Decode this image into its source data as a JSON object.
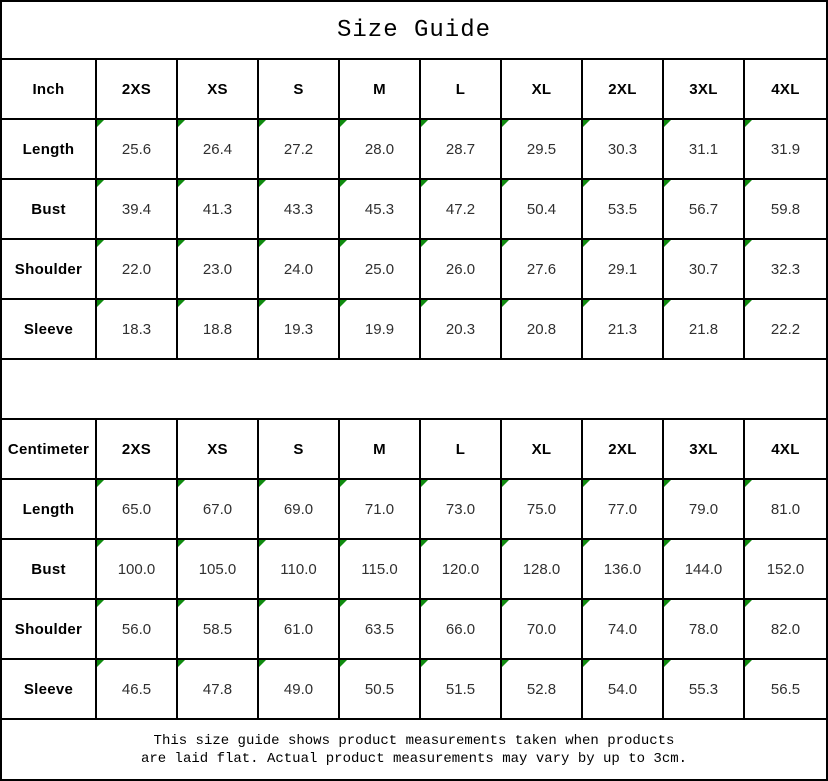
{
  "title": "Size Guide",
  "colors": {
    "border": "#000000",
    "marker_green": "#0f8a0f",
    "value_text": "#303030",
    "header_text": "#000000"
  },
  "icons": {
    "cell_corner_marker": "comment-marker-triangle-icon"
  },
  "tables": [
    {
      "unit_header": "Inch",
      "sizes": [
        "2XS",
        "XS",
        "S",
        "M",
        "L",
        "XL",
        "2XL",
        "3XL",
        "4XL"
      ],
      "rows": [
        {
          "label": "Length",
          "values": [
            "25.6",
            "26.4",
            "27.2",
            "28.0",
            "28.7",
            "29.5",
            "30.3",
            "31.1",
            "31.9"
          ]
        },
        {
          "label": "Bust",
          "values": [
            "39.4",
            "41.3",
            "43.3",
            "45.3",
            "47.2",
            "50.4",
            "53.5",
            "56.7",
            "59.8"
          ]
        },
        {
          "label": "Shoulder",
          "values": [
            "22.0",
            "23.0",
            "24.0",
            "25.0",
            "26.0",
            "27.6",
            "29.1",
            "30.7",
            "32.3"
          ]
        },
        {
          "label": "Sleeve",
          "values": [
            "18.3",
            "18.8",
            "19.3",
            "19.9",
            "20.3",
            "20.8",
            "21.3",
            "21.8",
            "22.2"
          ]
        }
      ]
    },
    {
      "unit_header": "Centimeter",
      "sizes": [
        "2XS",
        "XS",
        "S",
        "M",
        "L",
        "XL",
        "2XL",
        "3XL",
        "4XL"
      ],
      "rows": [
        {
          "label": "Length",
          "values": [
            "65.0",
            "67.0",
            "69.0",
            "71.0",
            "73.0",
            "75.0",
            "77.0",
            "79.0",
            "81.0"
          ]
        },
        {
          "label": "Bust",
          "values": [
            "100.0",
            "105.0",
            "110.0",
            "115.0",
            "120.0",
            "128.0",
            "136.0",
            "144.0",
            "152.0"
          ]
        },
        {
          "label": "Shoulder",
          "values": [
            "56.0",
            "58.5",
            "61.0",
            "63.5",
            "66.0",
            "70.0",
            "74.0",
            "78.0",
            "82.0"
          ]
        },
        {
          "label": "Sleeve",
          "values": [
            "46.5",
            "47.8",
            "49.0",
            "50.5",
            "51.5",
            "52.8",
            "54.0",
            "55.3",
            "56.5"
          ]
        }
      ]
    }
  ],
  "footer": {
    "line1": "This size guide shows product measurements taken when products",
    "line2": "are laid flat. Actual product measurements may vary by up to 3cm."
  }
}
